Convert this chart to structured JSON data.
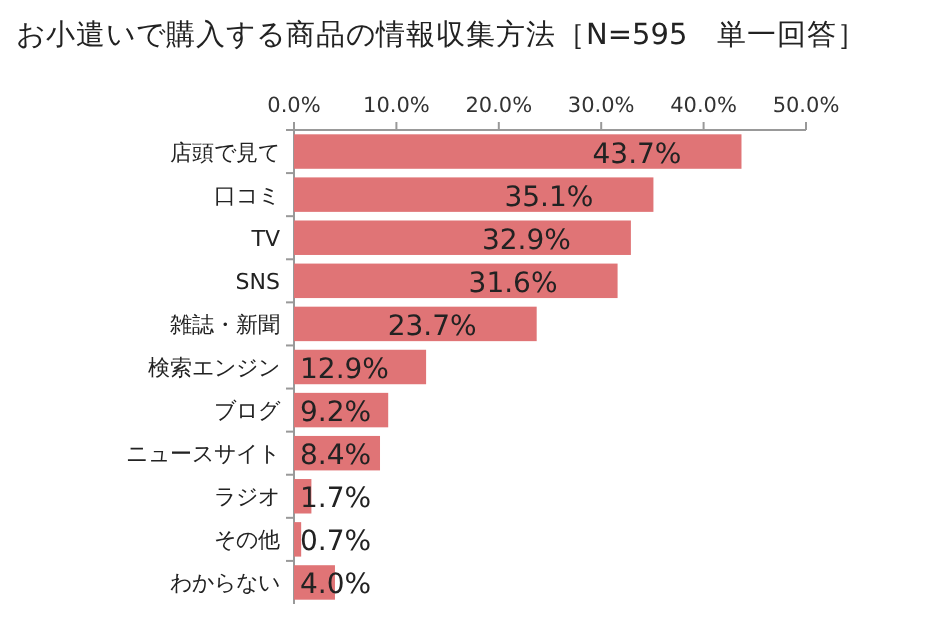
{
  "chart_data": {
    "type": "bar",
    "orientation": "horizontal",
    "title": "お小遣いで購入する商品の情報収集方法［N=595　単一回答］",
    "categories": [
      "店頭で見て",
      "口コミ",
      "TV",
      "SNS",
      "雑誌・新聞",
      "検索エンジン",
      "ブログ",
      "ニュースサイト",
      "ラジオ",
      "その他",
      "わからない"
    ],
    "values": [
      43.7,
      35.1,
      32.9,
      31.6,
      23.7,
      12.9,
      9.2,
      8.4,
      1.7,
      0.7,
      4.0
    ],
    "value_labels": [
      "43.7%",
      "35.1%",
      "32.9%",
      "31.6%",
      "23.7%",
      "12.9%",
      "9.2%",
      "8.4%",
      "1.7%",
      "0.7%",
      "4.0%"
    ],
    "color": "#e07476",
    "xlim": [
      0,
      50
    ],
    "xticks": [
      {
        "value": 0,
        "label": "0.0%"
      },
      {
        "value": 10,
        "label": "10.0%"
      },
      {
        "value": 20,
        "label": "20.0%"
      },
      {
        "value": 30,
        "label": "30.0%"
      },
      {
        "value": 40,
        "label": "40.0%"
      },
      {
        "value": 50,
        "label": "50.0%"
      }
    ]
  }
}
